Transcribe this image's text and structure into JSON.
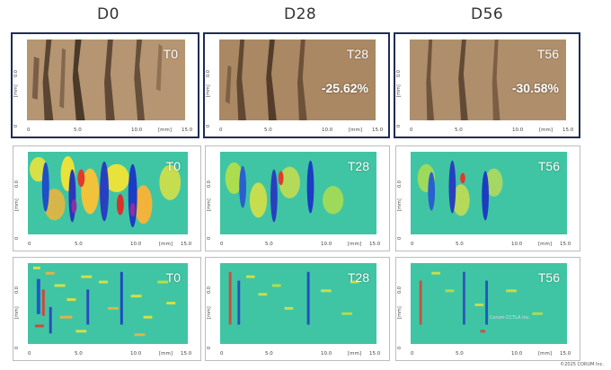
{
  "columns": [
    {
      "label": "D0"
    },
    {
      "label": "D28"
    },
    {
      "label": "D56"
    }
  ],
  "rows": [
    {
      "type": "photo",
      "panels": [
        {
          "time": "T0",
          "change": ""
        },
        {
          "time": "T28",
          "change": "-25.62%"
        },
        {
          "time": "T56",
          "change": "-30.58%"
        }
      ]
    },
    {
      "type": "low-frequency-map",
      "panels": [
        {
          "time": "T0"
        },
        {
          "time": "T28"
        },
        {
          "time": "T56"
        }
      ]
    },
    {
      "type": "high-frequency-map",
      "panels": [
        {
          "time": "T0"
        },
        {
          "time": "T28"
        },
        {
          "time": "T56"
        }
      ]
    }
  ],
  "axis": {
    "y_unit": "[mm]",
    "y_mid": "0.0",
    "y_zero": "0",
    "x_ticks": [
      "0",
      "5.0",
      "10.0",
      "[mm]",
      "15.0"
    ],
    "x_ticks_row1": [
      "0",
      "5.0",
      "10.0",
      "[mm]",
      "15.0"
    ]
  },
  "watermark": "Corum CCTLA Inc.",
  "copyright": "©2025 CORUM Inc.",
  "colors": {
    "frame": "#1e2d55",
    "skin_base": "#9b7a55",
    "map_base": "#3cc4a0"
  }
}
